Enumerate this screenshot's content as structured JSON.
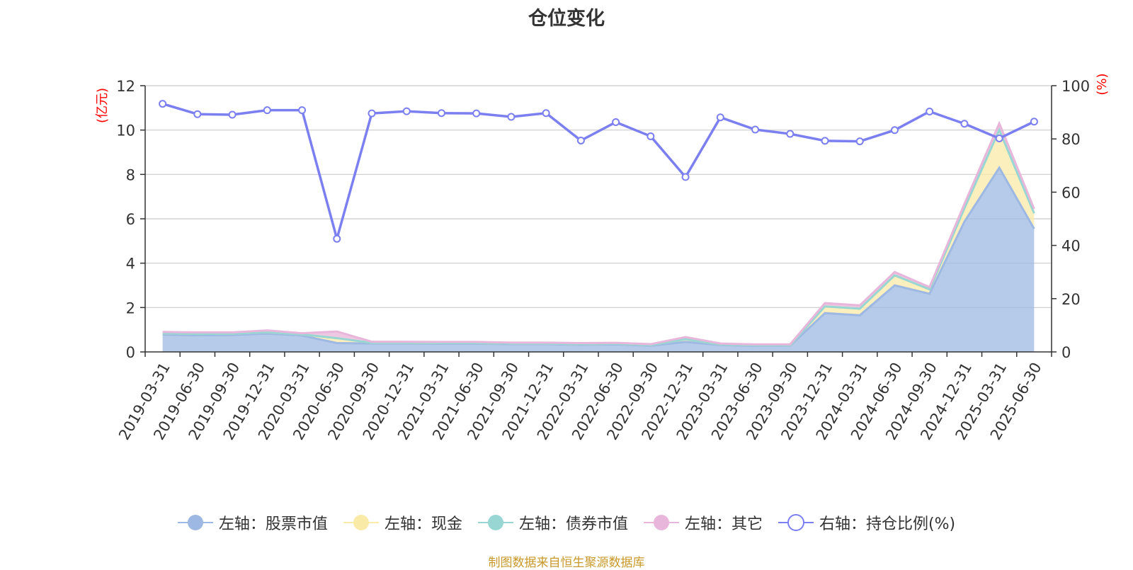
{
  "chart_data": {
    "type": "area",
    "title": "仓位变化",
    "categories": [
      "2019-03-31",
      "2019-06-30",
      "2019-09-30",
      "2019-12-31",
      "2020-03-31",
      "2020-06-30",
      "2020-09-30",
      "2020-12-31",
      "2021-03-31",
      "2021-06-30",
      "2021-09-30",
      "2021-12-31",
      "2022-03-31",
      "2022-06-30",
      "2022-09-30",
      "2022-12-31",
      "2023-03-31",
      "2023-06-30",
      "2023-09-30",
      "2023-12-31",
      "2024-03-31",
      "2024-06-30",
      "2024-09-30",
      "2024-12-31",
      "2025-03-31",
      "2025-06-30"
    ],
    "left_axis": {
      "unit": "(亿元)",
      "ylim": [
        0,
        12
      ],
      "ticks": [
        0,
        2,
        4,
        6,
        8,
        10,
        12
      ]
    },
    "right_axis": {
      "unit": "(%)",
      "ylim": [
        0,
        100
      ],
      "ticks": [
        0,
        20,
        40,
        60,
        80,
        100
      ]
    },
    "series": [
      {
        "name": "左轴：股票市值",
        "axis": "left",
        "stacked": true,
        "color": "#9db8e2",
        "values": [
          0.78,
          0.75,
          0.76,
          0.83,
          0.74,
          0.4,
          0.38,
          0.38,
          0.37,
          0.37,
          0.35,
          0.35,
          0.32,
          0.34,
          0.28,
          0.45,
          0.31,
          0.27,
          0.28,
          1.75,
          1.65,
          3.0,
          2.62,
          5.87,
          8.3,
          5.55
        ]
      },
      {
        "name": "左轴：现金",
        "axis": "left",
        "stacked": true,
        "color": "#faeaa8",
        "values": [
          0.06,
          0.06,
          0.06,
          0.06,
          0.05,
          0.22,
          0.03,
          0.03,
          0.03,
          0.03,
          0.03,
          0.03,
          0.03,
          0.03,
          0.03,
          0.12,
          0.03,
          0.03,
          0.02,
          0.3,
          0.3,
          0.45,
          0.2,
          0.6,
          1.7,
          0.7
        ]
      },
      {
        "name": "左轴：债券市值",
        "axis": "left",
        "stacked": true,
        "color": "#98d6d4",
        "values": [
          0,
          0,
          0,
          0,
          0,
          0,
          0,
          0,
          0,
          0,
          0,
          0,
          0,
          0,
          0,
          0,
          0,
          0,
          0,
          0,
          0,
          0,
          0,
          0,
          0,
          0
        ]
      },
      {
        "name": "左轴：其它",
        "axis": "left",
        "stacked": true,
        "color": "#e8b6da",
        "values": [
          0.06,
          0.07,
          0.06,
          0.08,
          0.05,
          0.3,
          0.05,
          0.05,
          0.05,
          0.05,
          0.04,
          0.04,
          0.05,
          0.04,
          0.04,
          0.1,
          0.04,
          0.04,
          0.04,
          0.15,
          0.15,
          0.15,
          0.1,
          0.2,
          0.3,
          0.2
        ]
      },
      {
        "name": "右轴：持仓比例(%)",
        "axis": "right",
        "color": "#7b7ff0",
        "values": [
          93.2,
          89.3,
          89.1,
          90.8,
          90.8,
          42.5,
          89.6,
          90.4,
          89.7,
          89.6,
          88.3,
          89.7,
          79.4,
          86.3,
          81.0,
          65.7,
          88.1,
          83.5,
          81.9,
          79.3,
          79.1,
          83.3,
          90.3,
          85.7,
          80.2,
          86.5
        ]
      }
    ],
    "grid": true,
    "legend_position": "bottom"
  },
  "source_note": "制图数据来自恒生聚源数据库"
}
